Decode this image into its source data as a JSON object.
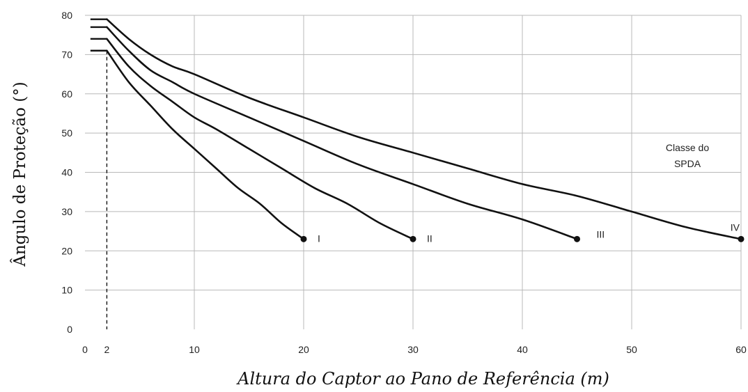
{
  "chart_data": {
    "type": "line",
    "xlabel": "Altura do Captor ao Pano de Referência (m)",
    "ylabel": "Ângulo de Proteção (°)",
    "xlim": [
      0,
      60
    ],
    "ylim": [
      0,
      80
    ],
    "xticks": [
      0,
      2,
      10,
      20,
      30,
      40,
      50,
      60
    ],
    "xtick_labels": [
      "0",
      "2",
      "10",
      "20",
      "30",
      "40",
      "50",
      "60"
    ],
    "yticks": [
      0,
      10,
      20,
      30,
      40,
      50,
      60,
      70,
      80
    ],
    "ytick_labels": [
      "0",
      "10",
      "20",
      "30",
      "40",
      "50",
      "60",
      "70",
      "80"
    ],
    "grid": true,
    "reference_line_x": 2,
    "legend_title": "Classe do SPDA",
    "series": [
      {
        "name": "I",
        "x": [
          0.5,
          2,
          4,
          6,
          8,
          10,
          12,
          14,
          16,
          18,
          20
        ],
        "y": [
          71,
          71,
          63,
          57,
          51,
          46,
          41,
          36,
          32,
          27,
          23
        ]
      },
      {
        "name": "II",
        "x": [
          0.5,
          2,
          4,
          6,
          8,
          10,
          12,
          15,
          18,
          21,
          24,
          27,
          30
        ],
        "y": [
          74,
          74,
          67,
          62,
          58,
          54,
          51,
          46,
          41,
          36,
          32,
          27,
          23
        ]
      },
      {
        "name": "III",
        "x": [
          0.5,
          2,
          4,
          6,
          8,
          10,
          15,
          20,
          25,
          30,
          35,
          40,
          45
        ],
        "y": [
          77,
          77,
          71,
          66,
          63,
          60,
          54,
          48,
          42,
          37,
          32,
          28,
          23
        ]
      },
      {
        "name": "IV",
        "x": [
          0.5,
          2,
          4,
          6,
          8,
          10,
          15,
          20,
          25,
          30,
          35,
          40,
          45,
          50,
          55,
          60
        ],
        "y": [
          79,
          79,
          74,
          70,
          67,
          65,
          59,
          54,
          49,
          45,
          41,
          37,
          34,
          30,
          26,
          23
        ]
      }
    ]
  }
}
